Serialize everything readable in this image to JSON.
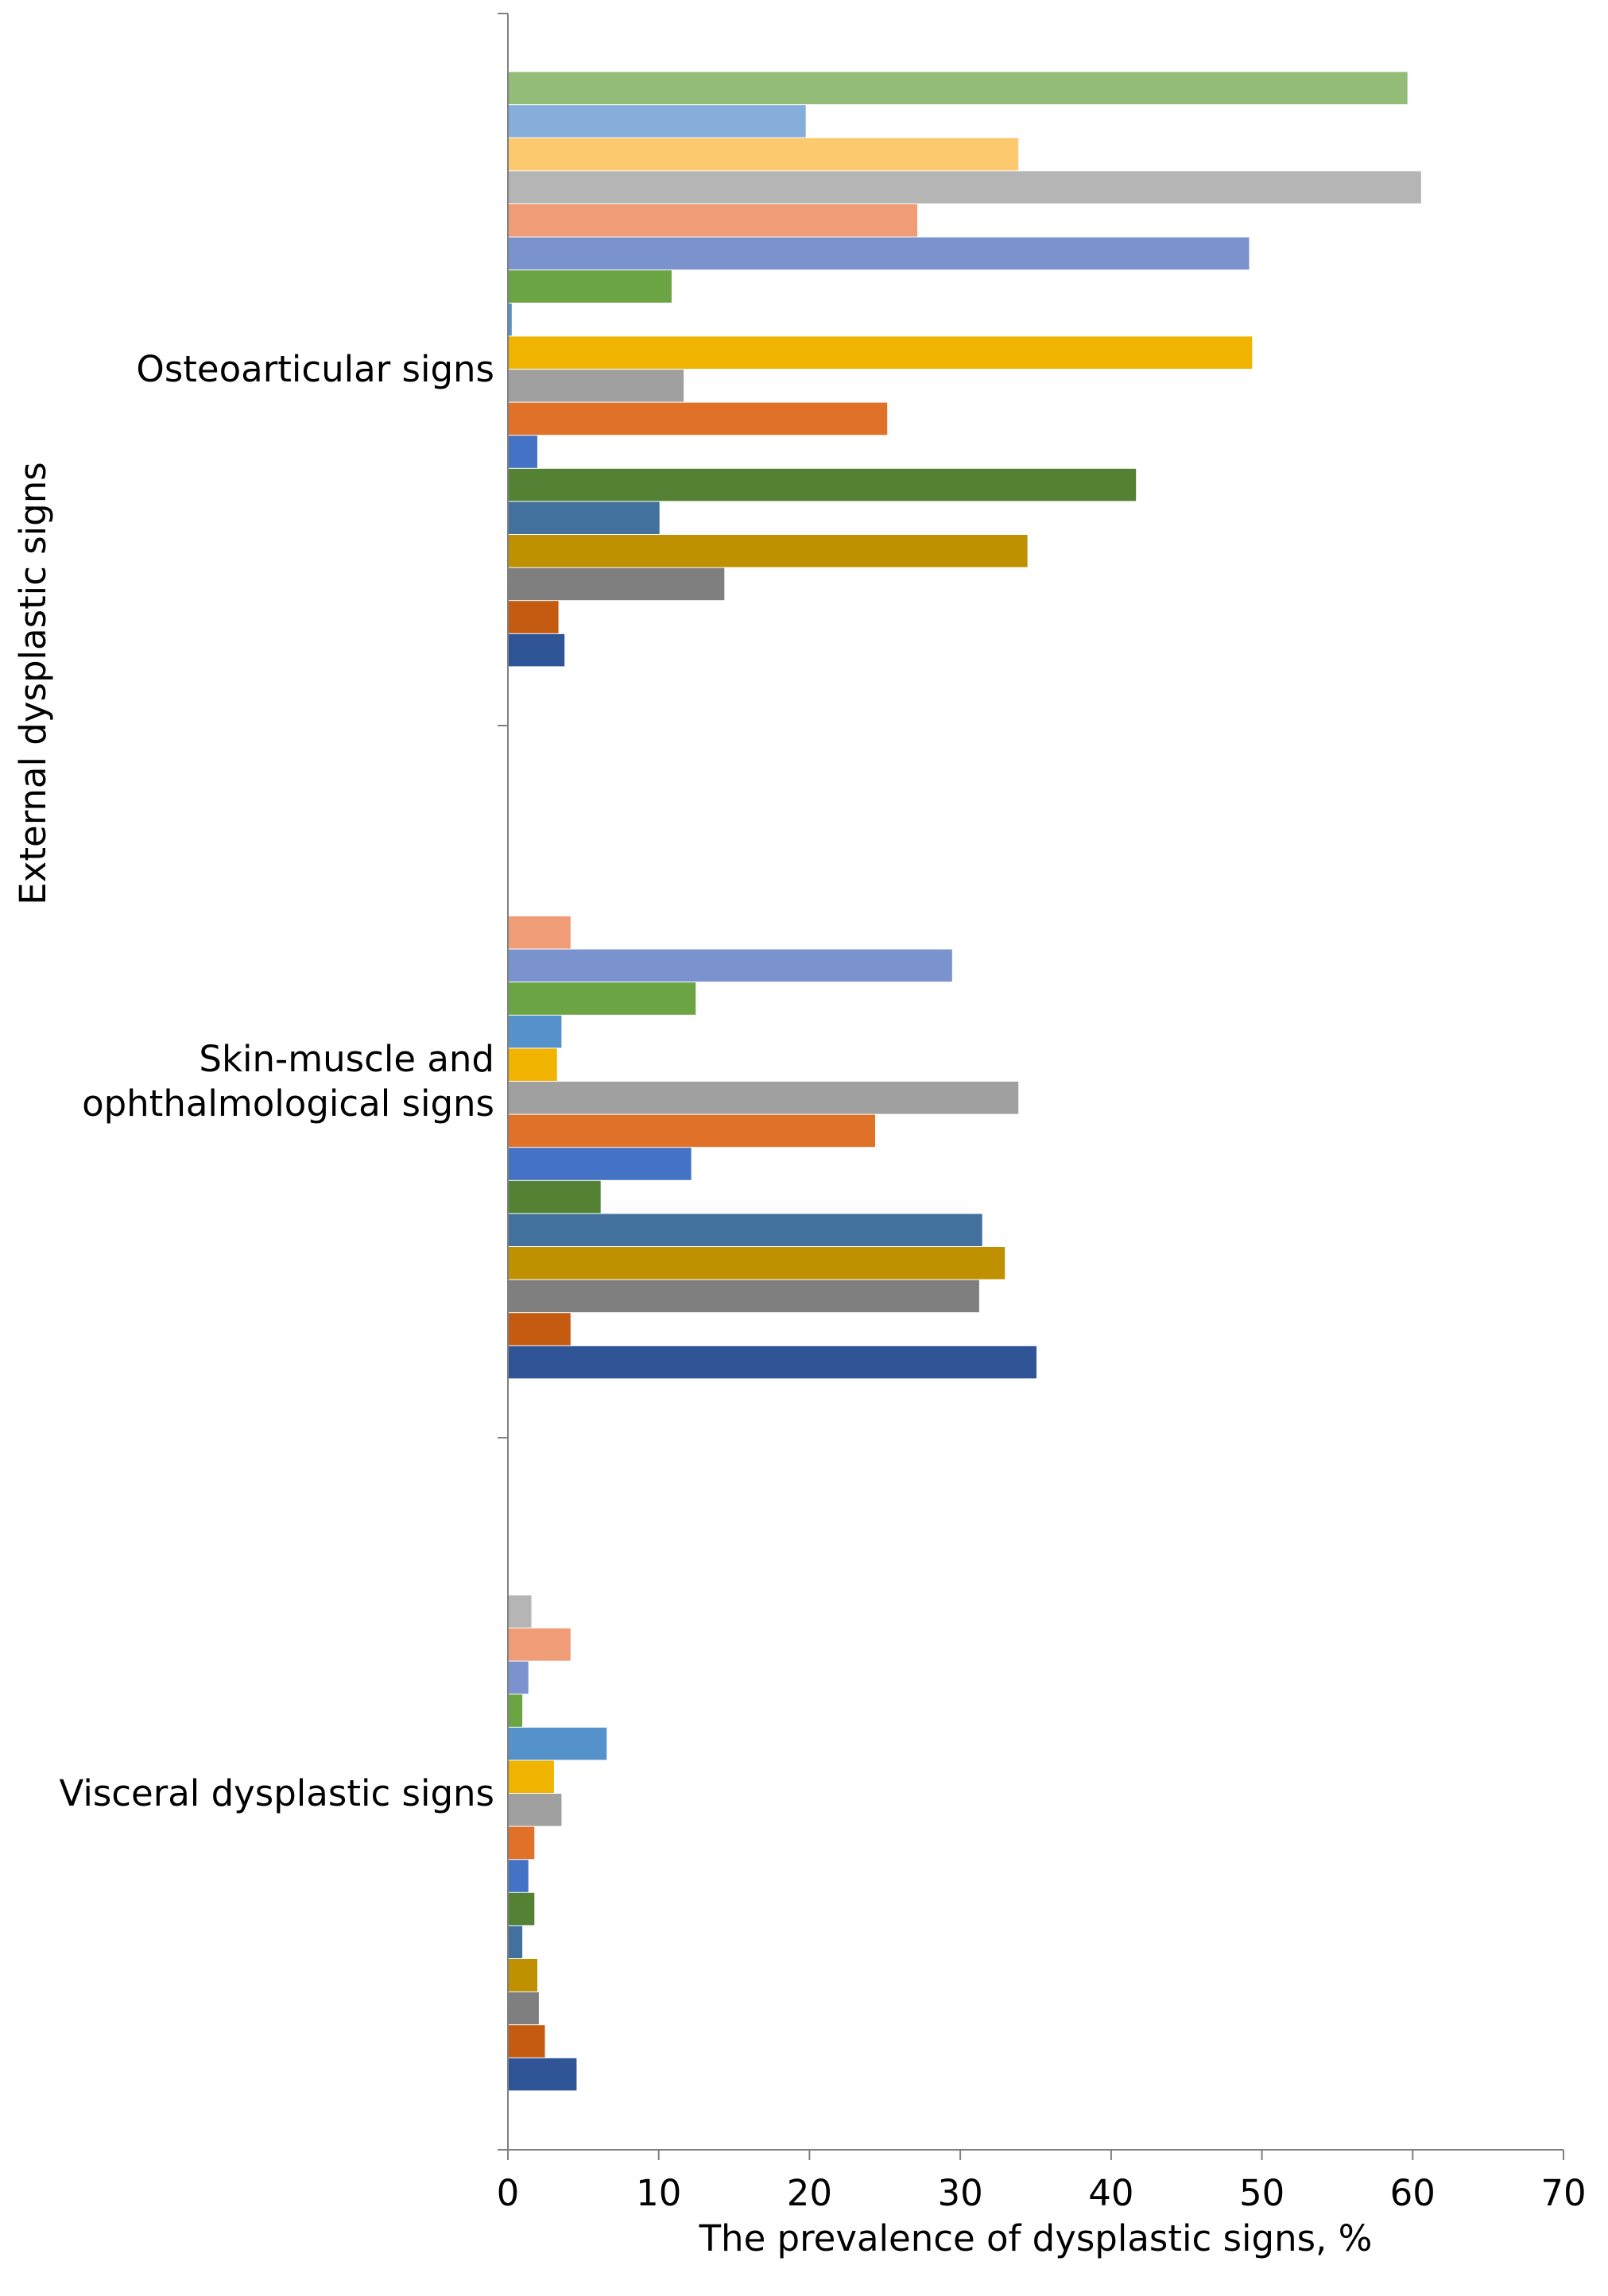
{
  "chart_data": {
    "type": "bar",
    "orientation": "horizontal",
    "categories": [
      {
        "name": "Osteoarticular signs",
        "lines": [
          "Osteoarticular signs"
        ]
      },
      {
        "name": "Skin-muscle and ophthalmological signs",
        "lines": [
          "Skin-muscle and",
          "ophthalmological signs"
        ]
      },
      {
        "name": "Visceral dysplastic signs",
        "lines": [
          "Visceral dysplastic signs"
        ]
      }
    ],
    "xlabel": "The prevalence of dysplastic signs, %",
    "ylabel": "External dysplastic signs",
    "xlim": [
      0,
      70
    ],
    "xticks": [
      "0",
      "10",
      "20",
      "30",
      "40",
      "50",
      "60",
      "70"
    ],
    "grid": false,
    "legend": "none",
    "series": [
      {
        "color": "#2F5597",
        "values": [
          3.7,
          35,
          4.5
        ]
      },
      {
        "color": "#C55A11",
        "values": [
          3.3,
          4.1,
          2.4
        ]
      },
      {
        "color": "#7F7F7F",
        "values": [
          14.3,
          31.2,
          2.0
        ]
      },
      {
        "color": "#BF9000",
        "values": [
          34.4,
          32.9,
          1.9
        ]
      },
      {
        "color": "#41719C",
        "values": [
          10.0,
          31.4,
          0.9
        ]
      },
      {
        "color": "#548235",
        "values": [
          41.6,
          6.1,
          1.7
        ]
      },
      {
        "color": "#4472C4",
        "values": [
          1.9,
          12.1,
          1.3
        ]
      },
      {
        "color": "#E07128",
        "values": [
          25.1,
          24.3,
          1.7
        ]
      },
      {
        "color": "#A0A0A0",
        "values": [
          11.6,
          33.8,
          3.5
        ]
      },
      {
        "color": "#F0B400",
        "values": [
          49.3,
          3.2,
          3.0
        ]
      },
      {
        "color": "#5592CB",
        "values": [
          0.2,
          3.5,
          6.5
        ]
      },
      {
        "color": "#6BA443",
        "values": [
          10.8,
          12.4,
          0.9
        ]
      },
      {
        "color": "#7A92CE",
        "values": [
          49.1,
          29.4,
          1.3
        ]
      },
      {
        "color": "#F09C76",
        "values": [
          27.1,
          4.1,
          4.1
        ]
      },
      {
        "color": "#B5B5B5",
        "values": [
          60.5,
          null,
          1.5
        ]
      },
      {
        "color": "#FDC96E",
        "values": [
          33.8,
          null,
          null
        ]
      },
      {
        "color": "#86AEDB",
        "values": [
          19.7,
          null,
          null
        ]
      },
      {
        "color": "#92BC78",
        "values": [
          59.6,
          null,
          null
        ]
      }
    ]
  }
}
